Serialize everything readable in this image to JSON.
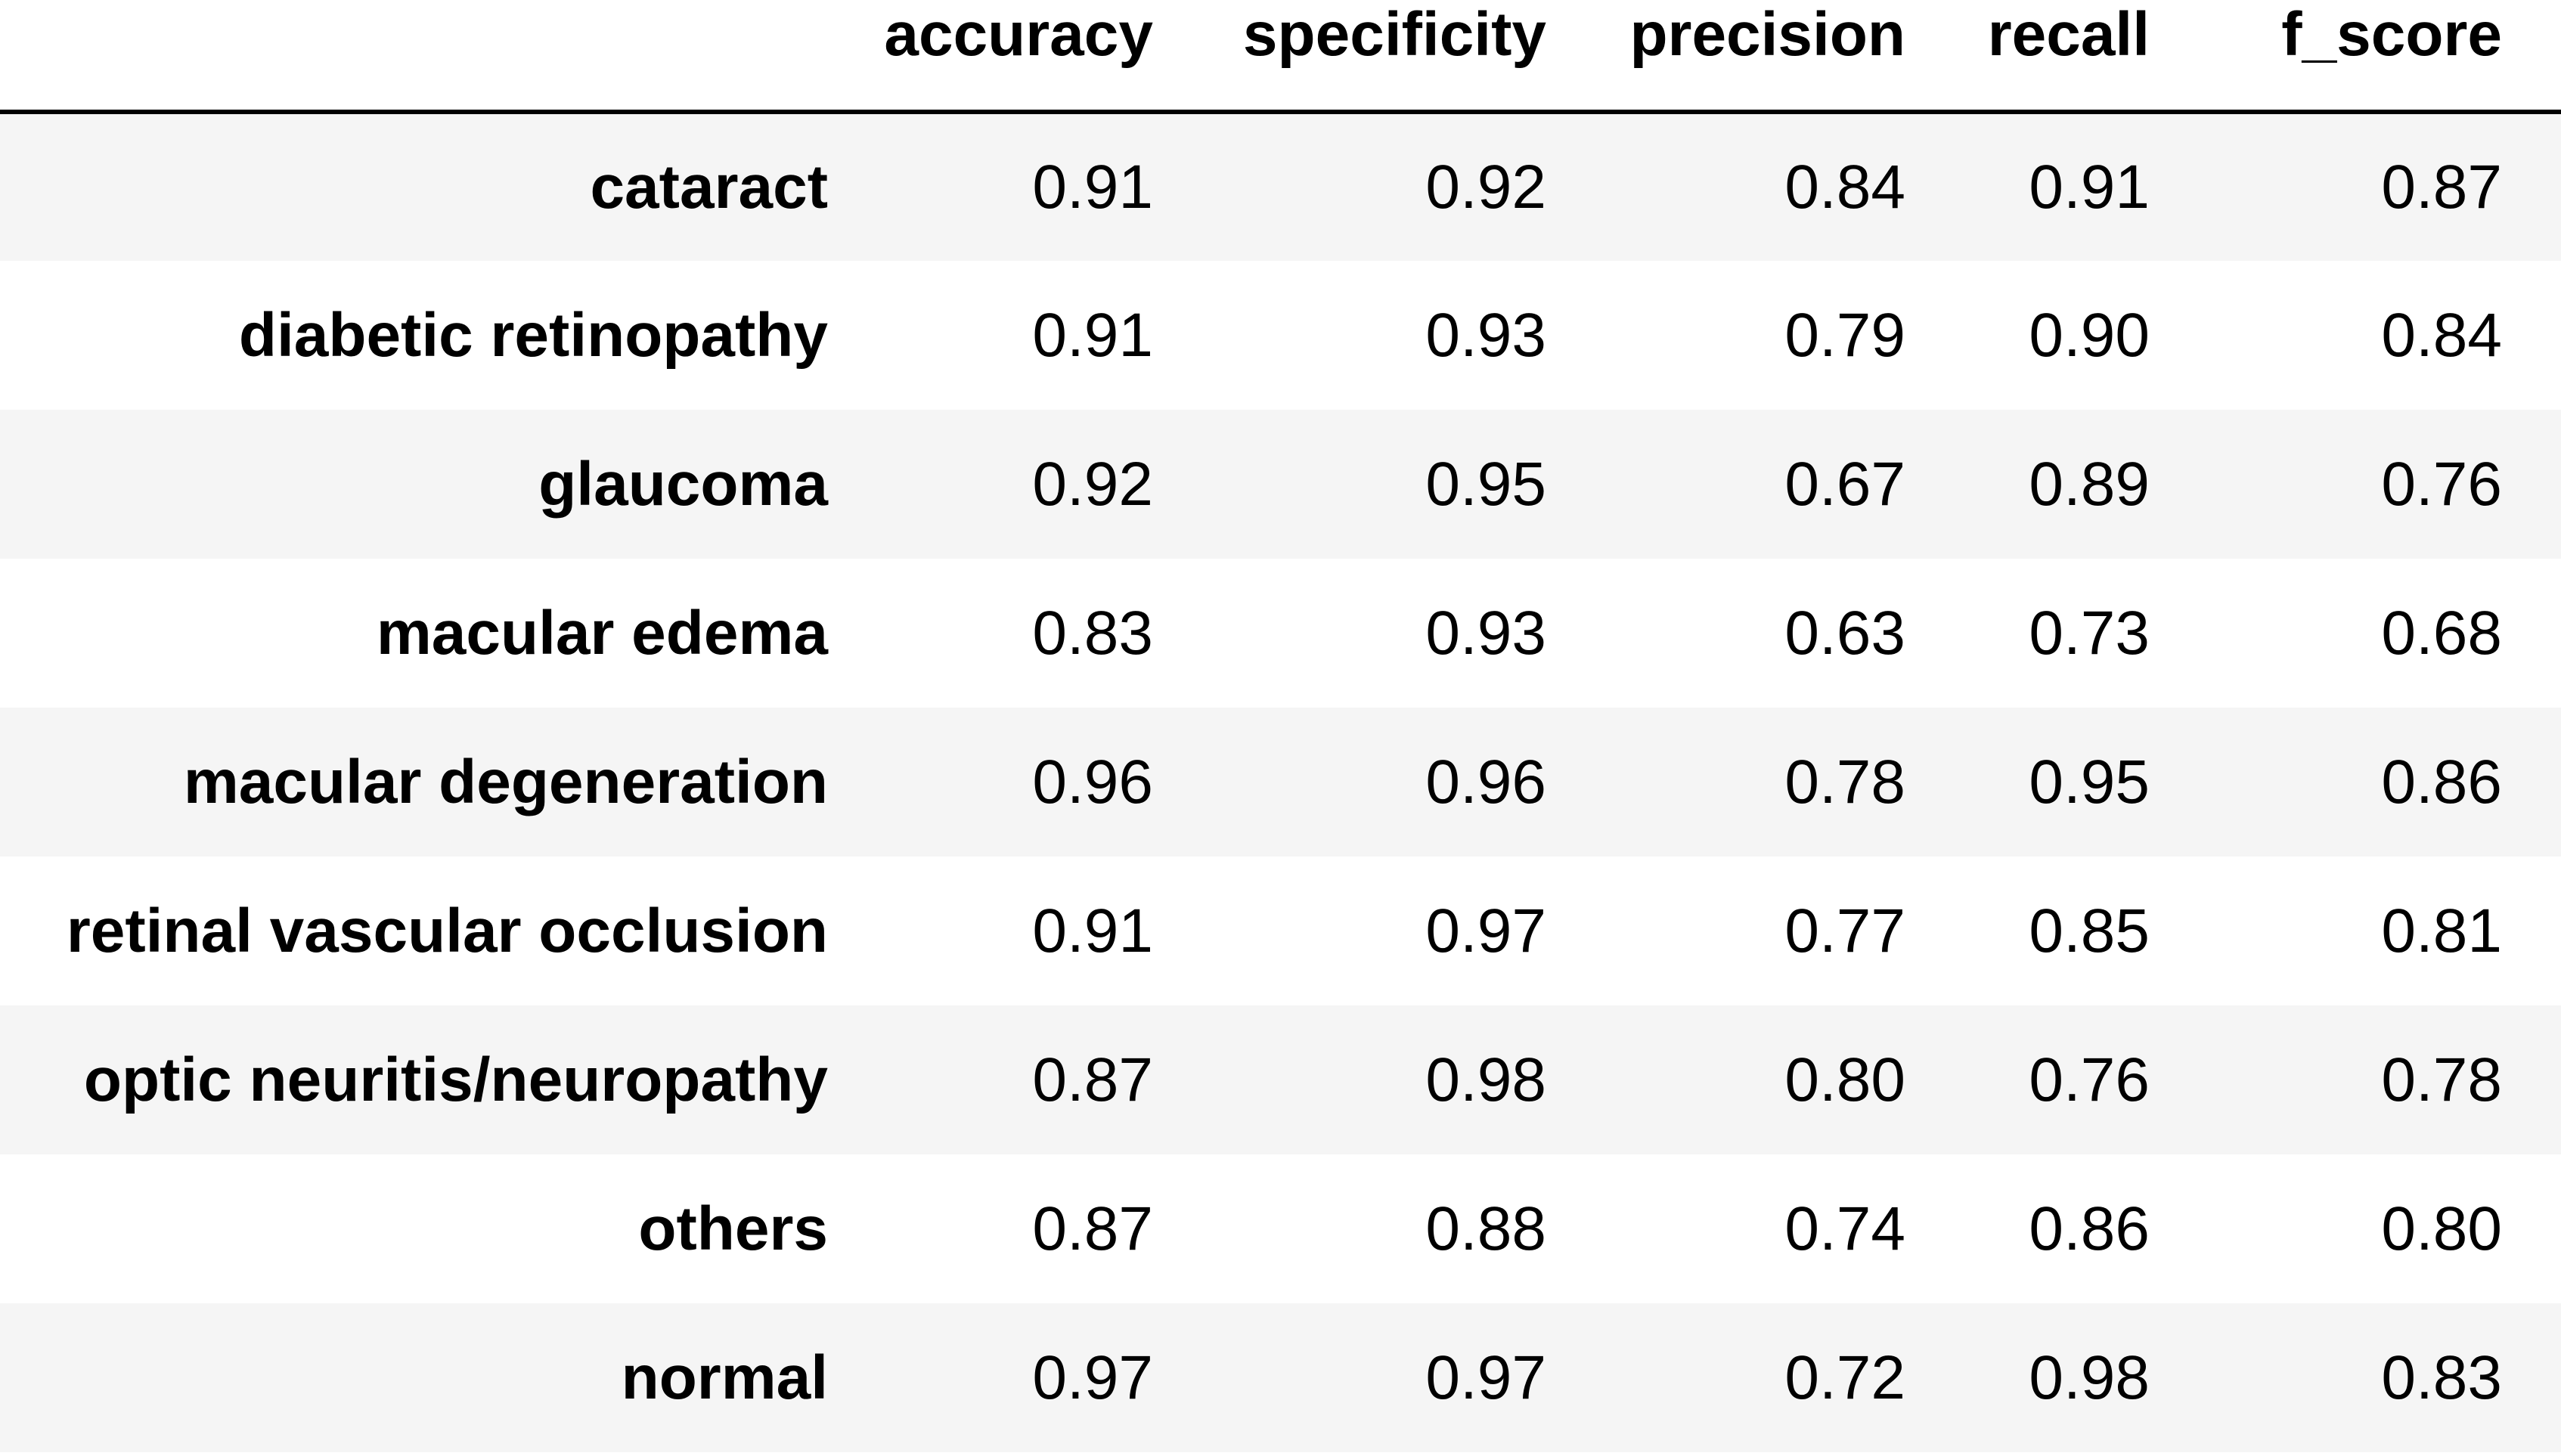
{
  "table": {
    "columns": [
      "accuracy",
      "specificity",
      "precision",
      "recall",
      "f_score"
    ],
    "rows": [
      {
        "label": "cataract",
        "values": [
          "0.91",
          "0.92",
          "0.84",
          "0.91",
          "0.87"
        ]
      },
      {
        "label": "diabetic retinopathy",
        "values": [
          "0.91",
          "0.93",
          "0.79",
          "0.90",
          "0.84"
        ]
      },
      {
        "label": "glaucoma",
        "values": [
          "0.92",
          "0.95",
          "0.67",
          "0.89",
          "0.76"
        ]
      },
      {
        "label": "macular edema",
        "values": [
          "0.83",
          "0.93",
          "0.63",
          "0.73",
          "0.68"
        ]
      },
      {
        "label": "macular degeneration",
        "values": [
          "0.96",
          "0.96",
          "0.78",
          "0.95",
          "0.86"
        ]
      },
      {
        "label": "retinal vascular occlusion",
        "values": [
          "0.91",
          "0.97",
          "0.77",
          "0.85",
          "0.81"
        ]
      },
      {
        "label": "optic neuritis/neuropathy",
        "values": [
          "0.87",
          "0.98",
          "0.80",
          "0.76",
          "0.78"
        ]
      },
      {
        "label": "others",
        "values": [
          "0.87",
          "0.88",
          "0.74",
          "0.86",
          "0.80"
        ]
      },
      {
        "label": "normal",
        "values": [
          "0.97",
          "0.97",
          "0.72",
          "0.98",
          "0.83"
        ]
      }
    ]
  },
  "colors": {
    "stripe": "#f5f5f5",
    "background": "#ffffff",
    "text": "#000000",
    "header_rule": "#000000"
  }
}
